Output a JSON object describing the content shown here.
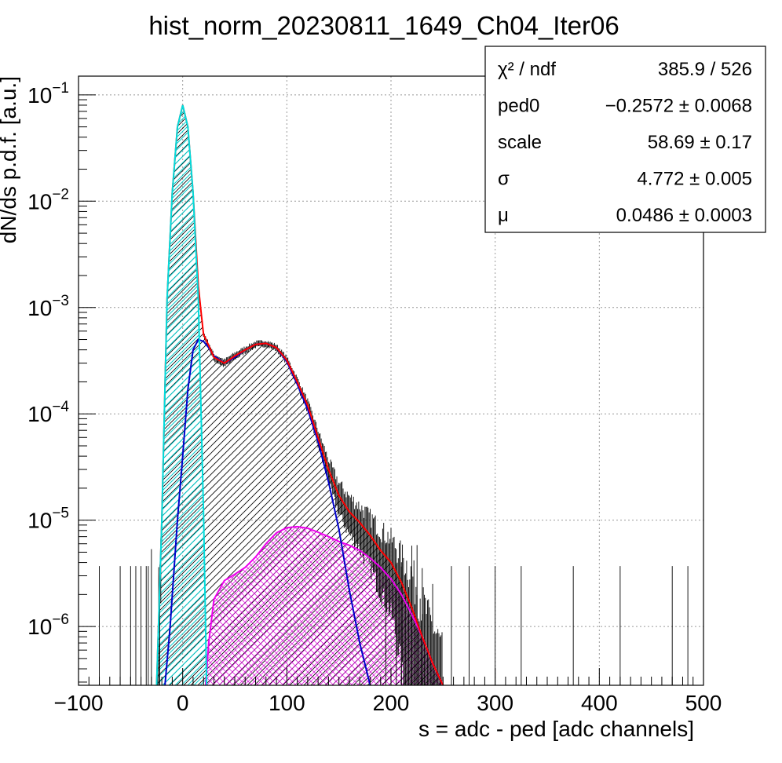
{
  "chart_data": {
    "type": "histogram",
    "title": "hist_norm_20230811_1649_Ch04_Iter06",
    "xlabel": "s = adc - ped [adc channels]",
    "ylabel": "dN/ds p.d.f. [a.u.]",
    "xlim": [
      -100,
      500
    ],
    "ylim": [
      2.8e-07,
      0.15
    ],
    "yscale": "log",
    "grid": true,
    "x_ticks": [
      {
        "value": -100,
        "label": "−100"
      },
      {
        "value": 0,
        "label": "0"
      },
      {
        "value": 100,
        "label": "100"
      },
      {
        "value": 200,
        "label": "200"
      },
      {
        "value": 300,
        "label": "300"
      },
      {
        "value": 400,
        "label": "400"
      },
      {
        "value": 500,
        "label": "500"
      }
    ],
    "y_ticks": [
      {
        "value": 0.1,
        "base": "10",
        "exp": "−1"
      },
      {
        "value": 0.01,
        "base": "10",
        "exp": "−2"
      },
      {
        "value": 0.001,
        "base": "10",
        "exp": "−3"
      },
      {
        "value": 0.0001,
        "base": "10",
        "exp": "−4"
      },
      {
        "value": 1e-05,
        "base": "10",
        "exp": "−5"
      },
      {
        "value": 1e-06,
        "base": "10",
        "exp": "−6"
      }
    ],
    "stats_box": {
      "position": "top-right",
      "rows": [
        {
          "name": "χ² / ndf",
          "value": "385.9 / 526"
        },
        {
          "name": "ped0",
          "value": "−0.2572 ± 0.0068"
        },
        {
          "name": "scale",
          "value": "58.69 ± 0.17"
        },
        {
          "name": "σ",
          "value": "4.772 ± 0.005"
        },
        {
          "name": "μ",
          "value": "0.0486 ± 0.0003"
        }
      ]
    },
    "curves": [
      {
        "role": "total-fit",
        "color": "#ff0000",
        "x": [
          -25,
          -20,
          -15,
          -10,
          -5,
          0,
          5,
          10,
          15,
          18,
          20,
          25,
          30,
          40,
          50,
          60,
          70,
          80,
          90,
          100,
          110,
          120,
          130,
          140,
          150,
          160,
          170,
          180,
          190,
          200,
          210,
          220,
          230,
          240,
          250
        ],
        "y": [
          2.8e-07,
          1e-05,
          0.0012,
          0.012,
          0.05,
          0.08,
          0.05,
          0.012,
          0.0016,
          0.00085,
          0.00056,
          0.00044,
          0.00034,
          0.0003,
          0.00035,
          0.0004,
          0.00045,
          0.00046,
          0.00042,
          0.00032,
          0.0002,
          0.00012,
          6e-05,
          3e-05,
          1.7e-05,
          1.2e-05,
          9.5e-06,
          7.2e-06,
          5.2e-06,
          4e-06,
          2.6e-06,
          1.5e-06,
          8e-07,
          4.5e-07,
          2.8e-07
        ]
      },
      {
        "role": "multi-pe-component",
        "color": "#0000cc",
        "x": [
          -17,
          -12,
          -5,
          0,
          5,
          10,
          15,
          20,
          25,
          30,
          40,
          50,
          60,
          70,
          80,
          90,
          100,
          110,
          120,
          130,
          140,
          150,
          160,
          170,
          180
        ],
        "y": [
          2.8e-07,
          1e-06,
          1e-05,
          4e-05,
          0.00017,
          0.0004,
          0.0005,
          0.00048,
          0.00042,
          0.00035,
          0.0003,
          0.00034,
          0.0004,
          0.00045,
          0.00046,
          0.00042,
          0.00031,
          0.00019,
          0.00011,
          5.5e-05,
          2.3e-05,
          8.2e-06,
          2.2e-06,
          7e-07,
          2.8e-07
        ]
      },
      {
        "role": "pedestal-component",
        "color": "#00dddd",
        "x": [
          -25,
          -20,
          -15,
          -10,
          -5,
          0,
          5,
          10,
          15,
          20,
          23
        ],
        "y": [
          2.8e-07,
          1e-05,
          0.0012,
          0.012,
          0.05,
          0.08,
          0.05,
          0.012,
          0.0012,
          1.2e-05,
          2.8e-07
        ]
      },
      {
        "role": "background-component",
        "color": "#ee00ee",
        "x": [
          22,
          25,
          30,
          40,
          50,
          60,
          70,
          80,
          90,
          100,
          110,
          120,
          130,
          140,
          150,
          160,
          170,
          180,
          190,
          200,
          210,
          220,
          230,
          240,
          250
        ],
        "y": [
          2.8e-07,
          7e-07,
          1.8e-06,
          2.7e-06,
          3.1e-06,
          3.6e-06,
          4.5e-06,
          6e-06,
          7.6e-06,
          8.5e-06,
          8.7e-06,
          8.4e-06,
          7.7e-06,
          7e-06,
          6.3e-06,
          5.8e-06,
          5.2e-06,
          4.4e-06,
          3.6e-06,
          2.8e-06,
          2e-06,
          1.3e-06,
          8e-07,
          4.5e-07,
          2.8e-07
        ]
      }
    ]
  }
}
